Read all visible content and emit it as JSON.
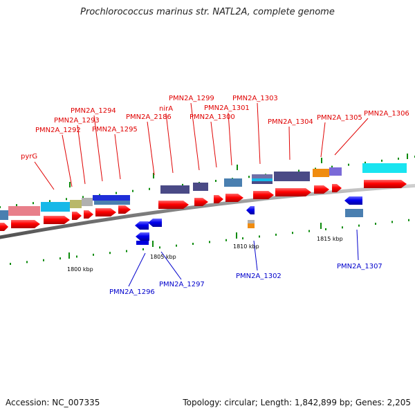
{
  "title": "Prochlorococcus marinus str. NATL2A, complete genome",
  "footer": {
    "accession": "Accession: NC_007335",
    "summary": "Topology: circular; Length: 1,842,899 bp; Genes: 2,205"
  },
  "ticks": [
    "1800 kbp",
    "1805 kbp",
    "1810 kbp",
    "1815 kbp"
  ],
  "labels_top": [
    "pyrG",
    "PMN2A_1292",
    "PMN2A_1293",
    "PMN2A_1294",
    "PMN2A_1295",
    "PMN2A_2186",
    "nirA",
    "PMN2A_1299",
    "PMN2A_1300",
    "PMN2A_1301",
    "PMN2A_1303",
    "PMN2A_1304",
    "PMN2A_1305",
    "PMN2A_1306"
  ],
  "labels_bottom": [
    "PMN2A_1296",
    "PMN2A_1297",
    "PMN2A_1302",
    "PMN2A_1307"
  ],
  "colors": {
    "forward_cds": "#ff0000",
    "reverse_cds": "#0000ff",
    "label_forward": "#e00000",
    "label_reverse": "#0000cc",
    "backbone": "#808080",
    "tick": "#0a8a0a"
  }
}
